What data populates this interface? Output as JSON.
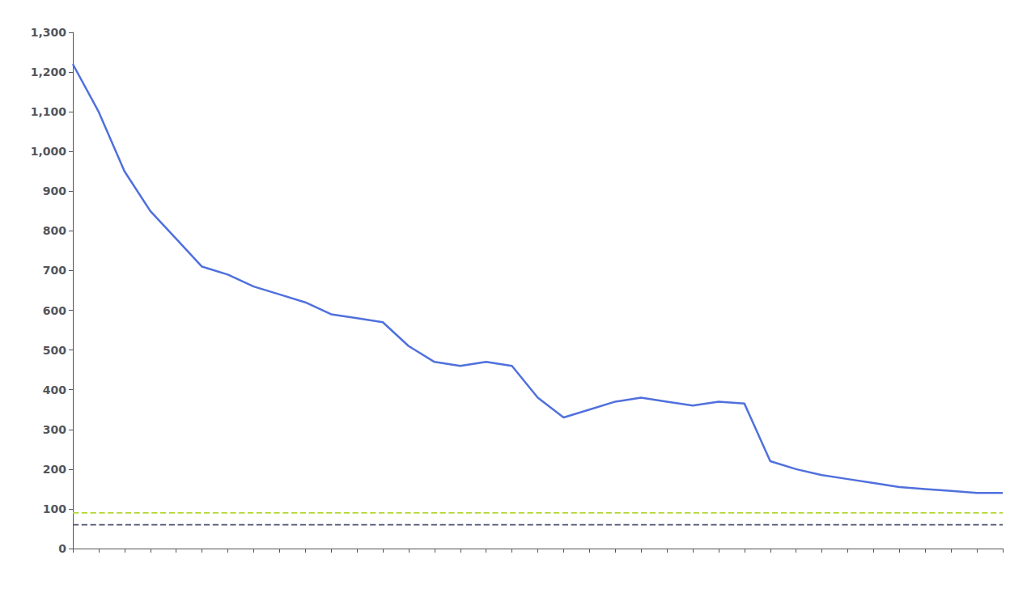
{
  "chart_data": {
    "type": "line",
    "series": [
      {
        "x": [
          0,
          1,
          2,
          3,
          4,
          5,
          6,
          7,
          8,
          9,
          10,
          11,
          12,
          13,
          14,
          15,
          16,
          17,
          18,
          19,
          20,
          21,
          22,
          23,
          24,
          25,
          26,
          27,
          28,
          29,
          30,
          31,
          32,
          33,
          34,
          35,
          36
        ],
        "values": [
          1220,
          1100,
          950,
          850,
          780,
          710,
          690,
          660,
          640,
          620,
          590,
          580,
          570,
          510,
          470,
          460,
          470,
          460,
          380,
          330,
          350,
          370,
          380,
          370,
          360,
          370,
          365,
          220,
          200,
          185,
          175,
          165,
          155,
          150,
          145,
          140,
          140
        ],
        "line_style": "solid"
      },
      {
        "x": [
          0,
          36
        ],
        "values": [
          90,
          90
        ],
        "line_style": "dashed"
      },
      {
        "x": [
          0,
          36
        ],
        "values": [
          60,
          60
        ],
        "line_style": "dashed"
      }
    ],
    "xlim": [
      0,
      36
    ],
    "xticks": [
      0,
      1,
      2,
      3,
      4,
      5,
      6,
      7,
      8,
      9,
      10,
      11,
      12,
      13,
      14,
      15,
      16,
      17,
      18,
      19,
      20,
      21,
      22,
      23,
      24,
      25,
      26,
      27,
      28,
      29,
      30,
      31,
      32,
      33,
      34,
      35,
      36
    ],
    "ylim": [
      0,
      1300
    ],
    "yticks": [
      0,
      100,
      200,
      300,
      400,
      500,
      600,
      700,
      800,
      900,
      {
        "value": 1000,
        "label": "1,000"
      },
      {
        "value": 1100,
        "label": "1,100"
      },
      {
        "value": 1200,
        "label": "1,200"
      },
      {
        "value": 1300,
        "label": "1,300"
      }
    ],
    "tick_labels": "y",
    "grid": false
  }
}
